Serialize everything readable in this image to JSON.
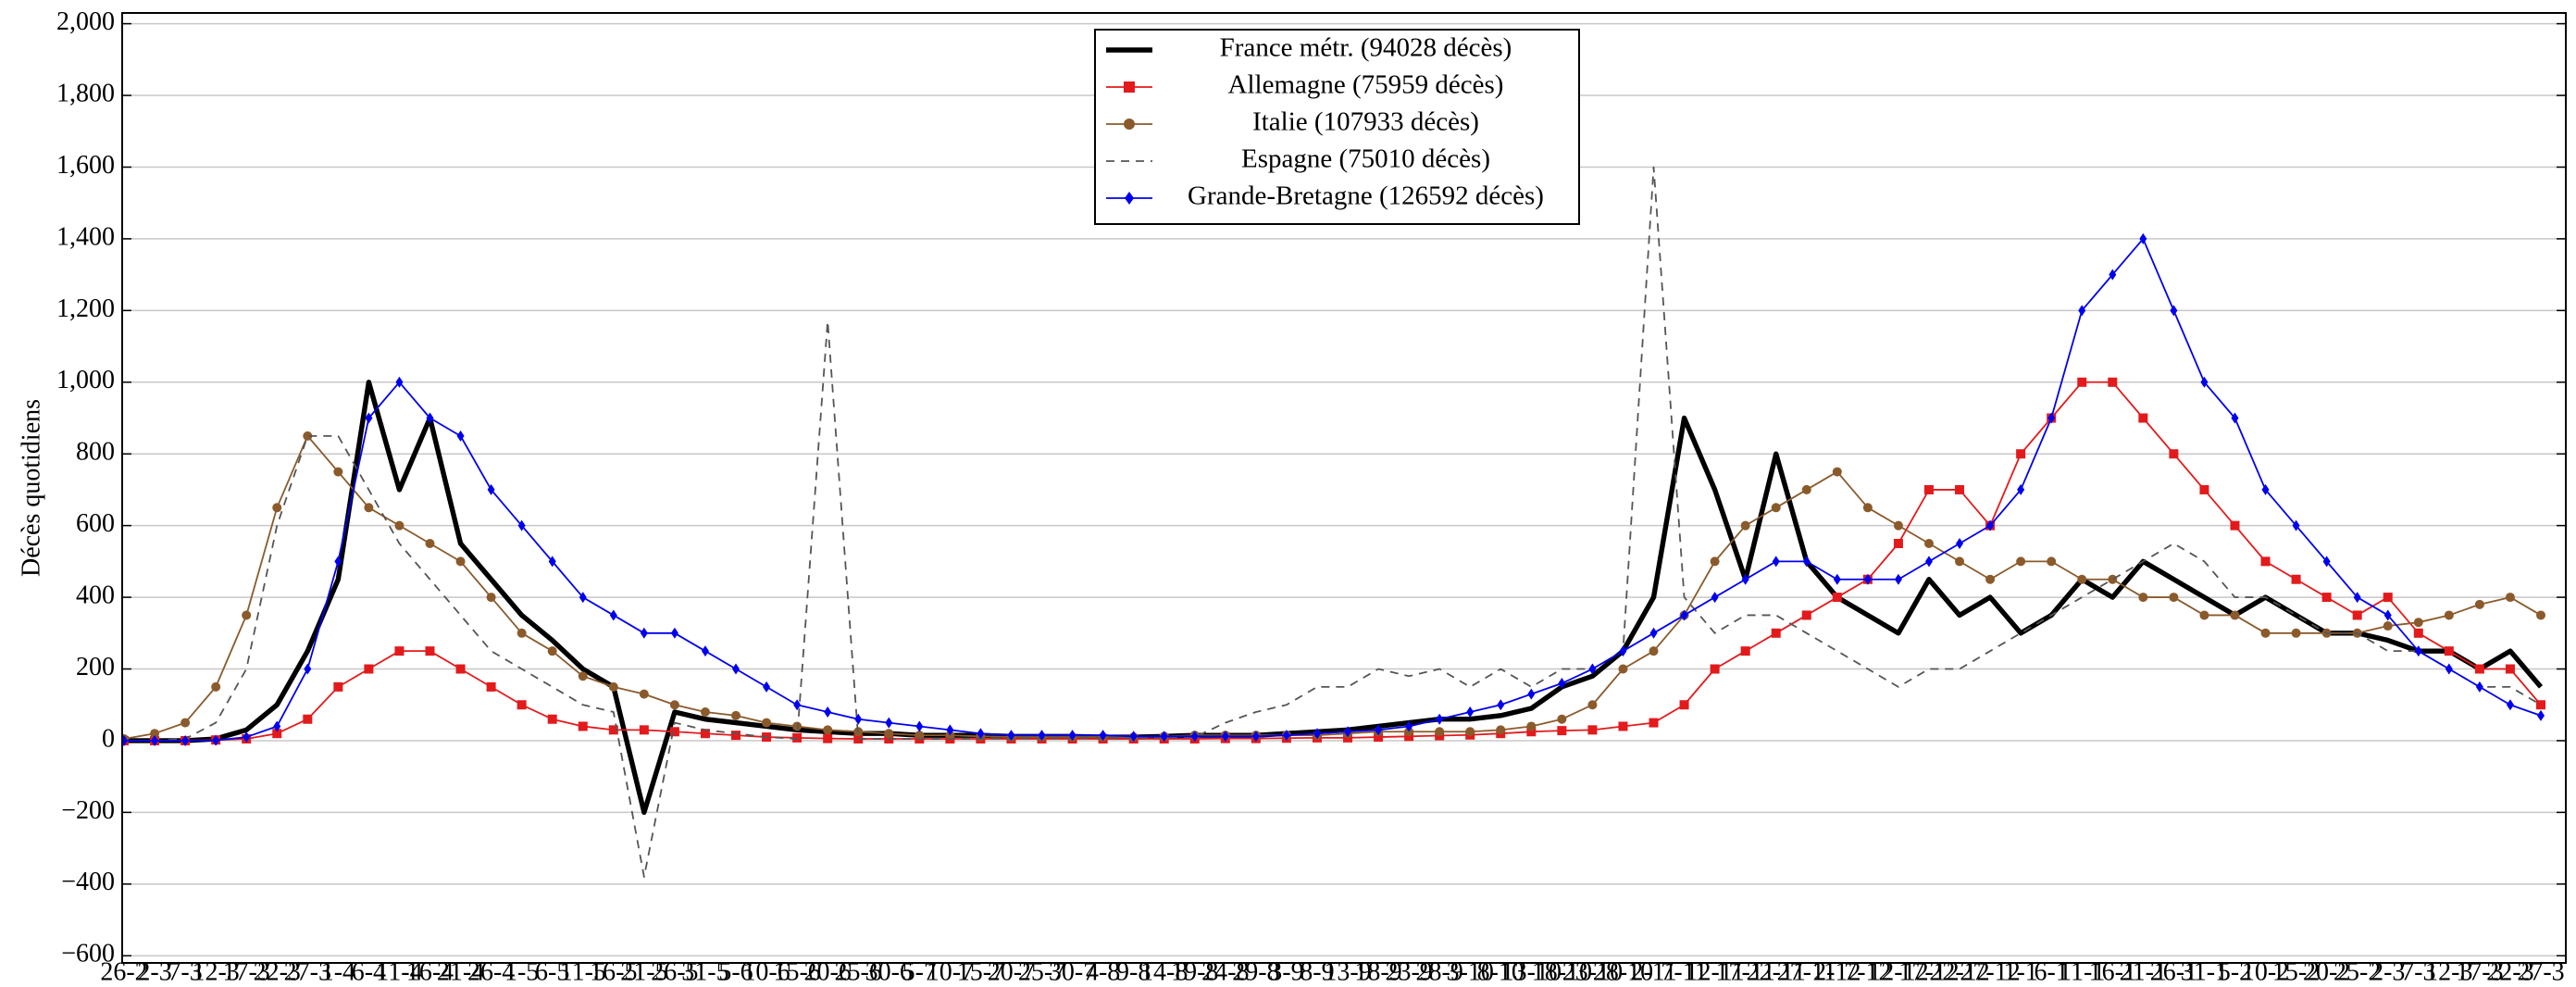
{
  "chart_data": {
    "type": "line",
    "y_label": "Décès quotidiens",
    "categories": [
      "26-2",
      "2-3",
      "7-3",
      "12-3",
      "17-3",
      "22-3",
      "27-3",
      "1-4",
      "6-4",
      "11-4",
      "16-4",
      "21-4",
      "26-4",
      "1-5",
      "6-5",
      "11-5",
      "16-5",
      "21-5",
      "26-5",
      "31-5",
      "5-6",
      "10-6",
      "15-6",
      "20-6",
      "25-6",
      "30-6",
      "5-7",
      "10-7",
      "15-7",
      "20-7",
      "25-7",
      "30-7",
      "4-8",
      "9-8",
      "14-8",
      "19-8",
      "24-8",
      "29-8",
      "3-9",
      "8-9",
      "13-9",
      "18-9",
      "23-9",
      "28-9",
      "3-10",
      "8-10",
      "13-10",
      "18-10",
      "23-10",
      "28-10",
      "2-11",
      "7-11",
      "12-11",
      "17-11",
      "22-11",
      "27-11",
      "2-12",
      "7-12",
      "12-12",
      "17-12",
      "22-12",
      "27-12",
      "1-1",
      "6-1",
      "11-1",
      "16-1",
      "21-1",
      "26-1",
      "31-1",
      "5-2",
      "10-2",
      "15-2",
      "20-2",
      "25-2",
      "2-3",
      "7-3",
      "12-3",
      "17-3",
      "22-3",
      "27-3"
    ],
    "series": [
      {
        "name": "France métr. (94028 décès)",
        "color": "#000000",
        "width": 3,
        "dash": false,
        "marker": "none",
        "values": [
          0,
          0,
          0,
          5,
          30,
          100,
          250,
          450,
          1000,
          700,
          900,
          550,
          450,
          350,
          280,
          200,
          150,
          -200,
          80,
          60,
          50,
          40,
          30,
          25,
          20,
          20,
          15,
          15,
          15,
          12,
          12,
          12,
          10,
          10,
          12,
          15,
          15,
          15,
          20,
          25,
          30,
          40,
          50,
          60,
          60,
          70,
          90,
          150,
          180,
          250,
          400,
          900,
          700,
          450,
          800,
          500,
          400,
          350,
          300,
          450,
          350,
          400,
          300,
          350,
          450,
          400,
          500,
          450,
          400,
          350,
          400,
          350,
          300,
          300,
          280,
          250,
          250,
          200,
          250,
          150
        ]
      },
      {
        "name": "Allemagne (75959 décès)",
        "color": "#e31a1c",
        "width": 1,
        "dash": false,
        "marker": "square",
        "values": [
          0,
          0,
          0,
          2,
          5,
          20,
          60,
          150,
          200,
          250,
          250,
          200,
          150,
          100,
          60,
          40,
          30,
          30,
          25,
          20,
          15,
          10,
          8,
          6,
          5,
          5,
          5,
          5,
          5,
          5,
          5,
          5,
          5,
          5,
          5,
          5,
          6,
          6,
          7,
          8,
          8,
          10,
          12,
          14,
          16,
          20,
          25,
          28,
          30,
          40,
          50,
          100,
          200,
          250,
          300,
          350,
          400,
          450,
          550,
          700,
          700,
          600,
          800,
          900,
          1000,
          1000,
          900,
          800,
          700,
          600,
          500,
          450,
          400,
          350,
          400,
          300,
          250,
          200,
          200,
          100
        ]
      },
      {
        "name": "Italie (107933 décès)",
        "color": "#8b5a2b",
        "width": 1,
        "dash": false,
        "marker": "circle",
        "values": [
          5,
          20,
          50,
          150,
          350,
          650,
          850,
          750,
          650,
          600,
          550,
          500,
          400,
          300,
          250,
          180,
          150,
          130,
          100,
          80,
          70,
          50,
          40,
          30,
          25,
          20,
          15,
          15,
          12,
          10,
          10,
          10,
          10,
          10,
          12,
          15,
          15,
          15,
          15,
          15,
          20,
          25,
          25,
          25,
          25,
          30,
          40,
          60,
          100,
          200,
          250,
          350,
          500,
          600,
          650,
          700,
          750,
          650,
          600,
          550,
          500,
          450,
          500,
          500,
          450,
          450,
          400,
          400,
          350,
          350,
          300,
          300,
          300,
          300,
          320,
          330,
          350,
          380,
          400,
          350
        ]
      },
      {
        "name": "Espagne (75010 décès)",
        "color": "#555555",
        "width": 1,
        "dash": true,
        "marker": "none",
        "values": [
          0,
          0,
          5,
          50,
          200,
          600,
          850,
          850,
          700,
          550,
          450,
          350,
          250,
          200,
          150,
          100,
          80,
          -380,
          50,
          30,
          20,
          10,
          5,
          1170,
          5,
          5,
          5,
          5,
          6,
          6,
          7,
          7,
          8,
          8,
          9,
          10,
          50,
          80,
          100,
          150,
          150,
          200,
          180,
          200,
          150,
          200,
          150,
          200,
          200,
          250,
          1600,
          400,
          300,
          350,
          350,
          300,
          250,
          200,
          150,
          200,
          200,
          250,
          300,
          350,
          400,
          450,
          500,
          550,
          500,
          400,
          400,
          350,
          300,
          300,
          250,
          250,
          200,
          150,
          150,
          100
        ]
      },
      {
        "name": "Grande-Bretagne (126592 décès)",
        "color": "#0000ee",
        "width": 1,
        "dash": false,
        "marker": "diamond",
        "values": [
          0,
          0,
          0,
          1,
          10,
          40,
          200,
          500,
          900,
          1000,
          900,
          850,
          700,
          600,
          500,
          400,
          350,
          300,
          300,
          250,
          200,
          150,
          100,
          80,
          60,
          50,
          40,
          30,
          20,
          15,
          15,
          15,
          15,
          12,
          12,
          12,
          12,
          12,
          15,
          20,
          25,
          30,
          40,
          60,
          80,
          100,
          130,
          160,
          200,
          250,
          300,
          350,
          400,
          450,
          500,
          500,
          450,
          450,
          450,
          500,
          550,
          600,
          700,
          900,
          1200,
          1300,
          1400,
          1200,
          1000,
          900,
          700,
          600,
          500,
          400,
          350,
          250,
          200,
          150,
          100,
          70
        ]
      }
    ],
    "ylim": [
      -620,
      2030
    ],
    "yticks": [
      {
        "value": -600,
        "label": "−600"
      },
      {
        "value": -400,
        "label": "−400"
      },
      {
        "value": -200,
        "label": "−200"
      },
      0,
      200,
      400,
      600,
      800,
      {
        "value": 1000,
        "label": "1,000"
      },
      {
        "value": 1200,
        "label": "1,200"
      },
      {
        "value": 1400,
        "label": "1,400"
      },
      {
        "value": 1600,
        "label": "1,600"
      },
      {
        "value": 1800,
        "label": "1,800"
      },
      {
        "value": 2000,
        "label": "2,000"
      }
    ],
    "grid": true,
    "legend": "top-center"
  }
}
